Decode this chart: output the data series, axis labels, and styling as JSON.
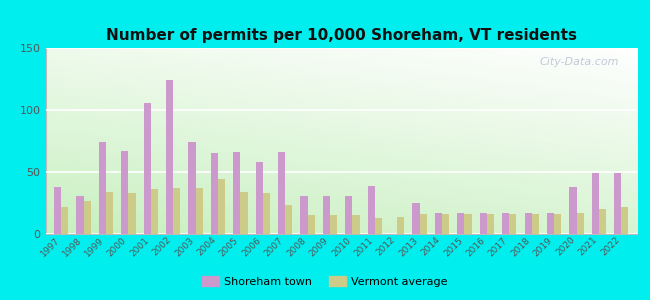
{
  "title": "Number of permits per 10,000 Shoreham, VT residents",
  "years": [
    1997,
    1998,
    1999,
    2000,
    2001,
    2002,
    2003,
    2004,
    2005,
    2006,
    2007,
    2008,
    2009,
    2010,
    2011,
    2012,
    2013,
    2014,
    2015,
    2016,
    2017,
    2018,
    2019,
    2020,
    2021,
    2022
  ],
  "shoreham": [
    38,
    31,
    74,
    67,
    106,
    124,
    74,
    65,
    66,
    58,
    66,
    31,
    31,
    31,
    39,
    0,
    25,
    17,
    17,
    17,
    17,
    17,
    17,
    38,
    49,
    49
  ],
  "vermont": [
    22,
    27,
    34,
    33,
    36,
    37,
    37,
    44,
    34,
    33,
    23,
    15,
    15,
    15,
    13,
    14,
    16,
    16,
    16,
    16,
    16,
    16,
    16,
    17,
    20,
    22
  ],
  "shoreham_color": "#cc99cc",
  "vermont_color": "#cccc88",
  "ylim": [
    0,
    150
  ],
  "yticks": [
    0,
    50,
    100,
    150
  ],
  "outer_bg": "#00eeee",
  "watermark": "City-Data.com",
  "legend_shoreham": "Shoreham town",
  "legend_vermont": "Vermont average",
  "title_fontsize": 11,
  "bar_width": 0.32
}
